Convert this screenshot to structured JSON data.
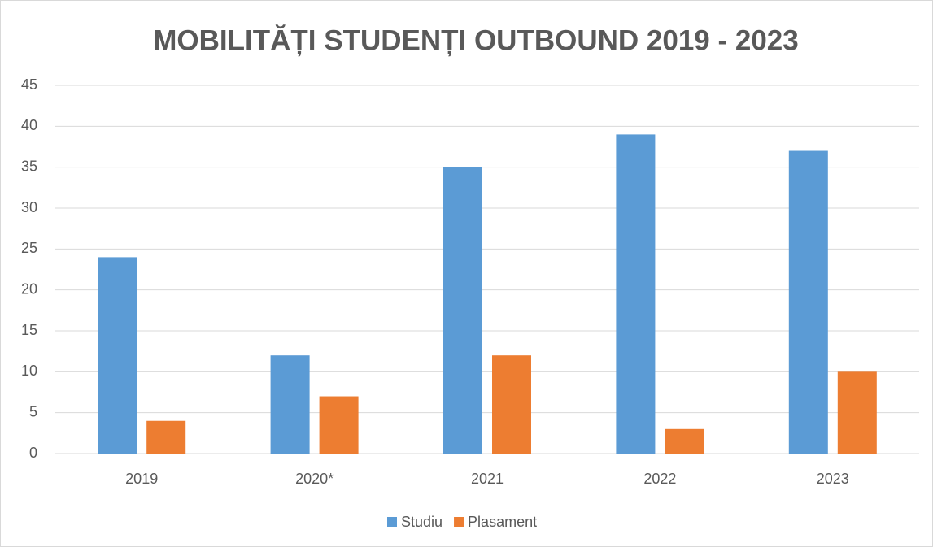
{
  "chart_data": {
    "type": "bar",
    "title": "MOBILITĂȚI STUDENȚI OUTBOUND 2019 - 2023",
    "categories": [
      "2019",
      "2020*",
      "2021",
      "2022",
      "2023"
    ],
    "series": [
      {
        "name": "Studiu",
        "color": "#5b9bd5",
        "values": [
          24,
          12,
          35,
          39,
          37
        ]
      },
      {
        "name": "Plasament",
        "color": "#ed7d31",
        "values": [
          4,
          7,
          12,
          3,
          10
        ]
      }
    ],
    "ylim": [
      0,
      45
    ],
    "yticks": [
      0,
      5,
      10,
      15,
      20,
      25,
      30,
      35,
      40,
      45
    ],
    "grid": true,
    "legend": "bottom"
  }
}
